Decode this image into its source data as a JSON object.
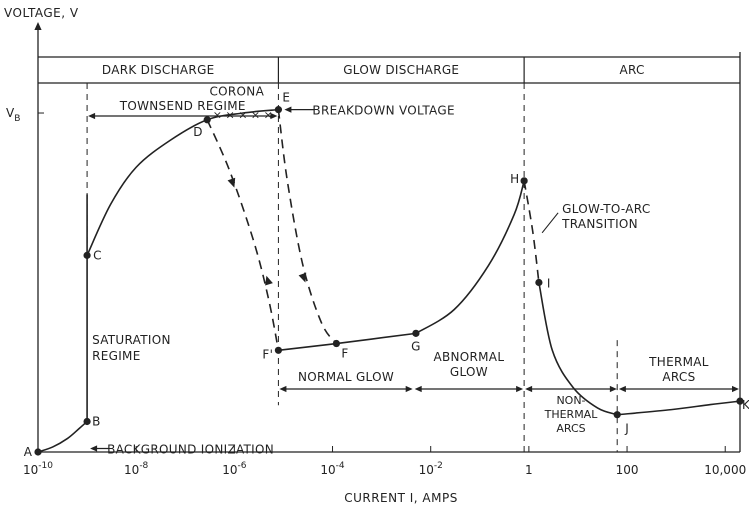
{
  "chart_data": {
    "type": "line",
    "ylabel": "VOLTAGE, V",
    "xlabel": "CURRENT I, AMPS",
    "x_scale": "log",
    "xlim": [
      1e-10,
      20000
    ],
    "ylim": [
      0,
      1.18
    ],
    "y_ticks": [
      {
        "label": "V",
        "sub": "B",
        "value": 1.0
      }
    ],
    "x_ticks": [
      {
        "label": "10",
        "exp": "-10",
        "value": 1e-10
      },
      {
        "label": "10",
        "exp": "-8",
        "value": 1e-08
      },
      {
        "label": "10",
        "exp": "-6",
        "value": 1e-06
      },
      {
        "label": "10",
        "exp": "-4",
        "value": 0.0001
      },
      {
        "label": "10",
        "exp": "-2",
        "value": 0.01
      },
      {
        "label": "1",
        "exp": "",
        "value": 1
      },
      {
        "label": "100",
        "exp": "",
        "value": 100
      },
      {
        "label": "10,000",
        "exp": "",
        "value": 10000
      }
    ],
    "regions": [
      {
        "label": "DARK DISCHARGE",
        "from": 1e-10,
        "to": 7.9e-06
      },
      {
        "label": "GLOW DISCHARGE",
        "from": 7.9e-06,
        "to": 0.8
      },
      {
        "label": "ARC",
        "from": 0.8,
        "to": 20000
      }
    ],
    "subregions": [
      {
        "label": "TOWNSEND REGIME",
        "from": 1e-09,
        "to": 7.9e-06,
        "level": 0.855
      },
      {
        "label": "NORMAL GLOW",
        "from": 7.9e-06,
        "to": 0.0045,
        "level": 0.11
      },
      {
        "label_lines": [
          "ABNORMAL",
          "GLOW"
        ],
        "from": 0.0045,
        "to": 0.8,
        "level": 0.11
      },
      {
        "label_lines": [
          "NON-",
          "THERMAL",
          "ARCS"
        ],
        "from": 0.8,
        "to": 65,
        "level": 0.11
      },
      {
        "label_lines": [
          "THERMAL",
          "ARCS"
        ],
        "from": 65,
        "to": 20000,
        "level": 0.11
      }
    ],
    "points": [
      {
        "label": "A",
        "x": 1e-10,
        "y": 0.0
      },
      {
        "label": "B",
        "x": 1e-09,
        "y": 0.09
      },
      {
        "label": "C",
        "x": 1e-09,
        "y": 0.58
      },
      {
        "label": "D",
        "x": 2.8e-07,
        "y": 0.98
      },
      {
        "label": "E",
        "x": 7.9e-06,
        "y": 1.01
      },
      {
        "label": "F'",
        "x": 7.9e-06,
        "y": 0.3
      },
      {
        "label": "F",
        "x": 0.00012,
        "y": 0.32
      },
      {
        "label": "G",
        "x": 0.005,
        "y": 0.35
      },
      {
        "label": "H",
        "x": 0.8,
        "y": 0.8
      },
      {
        "label": "I",
        "x": 1.6,
        "y": 0.5
      },
      {
        "label": "J",
        "x": 63,
        "y": 0.11
      },
      {
        "label": "K",
        "x": 20000,
        "y": 0.15
      }
    ],
    "series": [
      {
        "style": "solid",
        "points": [
          [
            1e-10,
            0.0
          ],
          [
            2e-10,
            0.015
          ],
          [
            4e-10,
            0.04
          ],
          [
            7e-10,
            0.07
          ],
          [
            1e-09,
            0.09
          ]
        ]
      },
      {
        "style": "solid",
        "points": [
          [
            1e-09,
            0.09
          ],
          [
            1e-09,
            0.3
          ],
          [
            1e-09,
            0.58
          ],
          [
            1e-09,
            0.76
          ]
        ]
      },
      {
        "style": "solid",
        "points": [
          [
            1e-09,
            0.58
          ],
          [
            3e-09,
            0.73
          ],
          [
            1e-08,
            0.84
          ],
          [
            5e-08,
            0.92
          ],
          [
            2.8e-07,
            0.98
          ],
          [
            1.5e-06,
            1.0
          ],
          [
            7.9e-06,
            1.01
          ]
        ]
      },
      {
        "style": "dashed",
        "points": [
          [
            7.9e-06,
            1.01
          ],
          [
            1.2e-05,
            0.8
          ],
          [
            2.5e-05,
            0.55
          ],
          [
            6e-05,
            0.38
          ],
          [
            0.00012,
            0.32
          ]
        ]
      },
      {
        "style": "dashed",
        "points": [
          [
            2.8e-07,
            0.98
          ],
          [
            8e-07,
            0.83
          ],
          [
            2.5e-06,
            0.62
          ],
          [
            5e-06,
            0.45
          ],
          [
            7.9e-06,
            0.3
          ]
        ]
      },
      {
        "style": "solid",
        "points": [
          [
            7.9e-06,
            0.3
          ],
          [
            0.00012,
            0.32
          ],
          [
            0.005,
            0.35
          ]
        ]
      },
      {
        "style": "solid",
        "points": [
          [
            0.005,
            0.35
          ],
          [
            0.03,
            0.42
          ],
          [
            0.15,
            0.55
          ],
          [
            0.5,
            0.7
          ],
          [
            0.8,
            0.8
          ]
        ]
      },
      {
        "style": "dashed",
        "points": [
          [
            0.8,
            0.8
          ],
          [
            1.2,
            0.65
          ],
          [
            1.6,
            0.5
          ]
        ]
      },
      {
        "style": "solid",
        "points": [
          [
            1.6,
            0.5
          ],
          [
            3,
            0.3
          ],
          [
            8,
            0.19
          ],
          [
            25,
            0.13
          ],
          [
            63,
            0.11
          ]
        ]
      },
      {
        "style": "solid",
        "points": [
          [
            63,
            0.11
          ],
          [
            800,
            0.125
          ],
          [
            5000,
            0.14
          ],
          [
            20000,
            0.15
          ]
        ]
      }
    ],
    "arrows_on_curve": [
      {
        "x": 1e-06,
        "y": 0.78,
        "dir": "down"
      },
      {
        "x": 4.5e-06,
        "y": 0.52,
        "dir": "up"
      },
      {
        "x": 2.8e-05,
        "y": 0.5,
        "dir": "down"
      }
    ],
    "corona": {
      "label": "CORONA",
      "marks": "× × × × ×"
    },
    "annotations": [
      {
        "label": "BREAKDOWN VOLTAGE",
        "target": "E"
      },
      {
        "label": "BACKGROUND IONIZATION",
        "target": "B"
      },
      {
        "label_lines": [
          "SATURATION",
          "REGIME"
        ],
        "target": "C"
      },
      {
        "label_lines": [
          "GLOW-TO-ARC",
          "TRANSITION"
        ],
        "target": "H"
      }
    ],
    "grid": false,
    "legend": "none"
  }
}
